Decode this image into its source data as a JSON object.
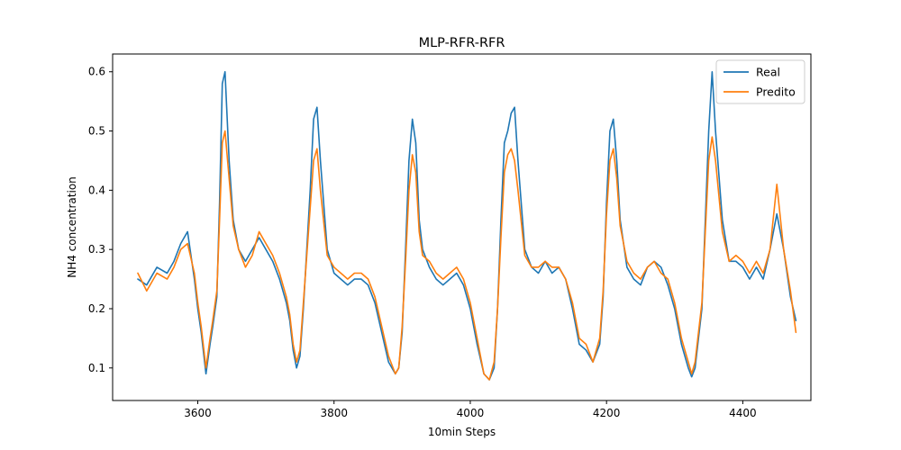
{
  "chart_data": {
    "type": "line",
    "title": "MLP-RFR-RFR",
    "xlabel": "10min Steps",
    "ylabel": "NH4 concentration",
    "xlim": [
      3475,
      4500
    ],
    "ylim": [
      0.045,
      0.63
    ],
    "xticks": [
      3600,
      3800,
      4000,
      4200,
      4400
    ],
    "yticks": [
      0.1,
      0.2,
      0.3,
      0.4,
      0.5,
      0.6
    ],
    "xtick_labels": [
      "3600",
      "3800",
      "4000",
      "4200",
      "4400"
    ],
    "ytick_labels": [
      "0.1",
      "0.2",
      "0.3",
      "0.4",
      "0.5",
      "0.6"
    ],
    "grid": false,
    "legend_position": "top-right",
    "series": [
      {
        "name": "Real",
        "color": "#1f77b4",
        "x": [
          3512,
          3525,
          3540,
          3555,
          3565,
          3575,
          3585,
          3595,
          3600,
          3605,
          3612,
          3618,
          3622,
          3628,
          3632,
          3636,
          3640,
          3646,
          3652,
          3660,
          3670,
          3680,
          3690,
          3700,
          3710,
          3720,
          3730,
          3735,
          3740,
          3745,
          3750,
          3755,
          3760,
          3765,
          3770,
          3775,
          3780,
          3790,
          3800,
          3810,
          3820,
          3830,
          3840,
          3850,
          3860,
          3870,
          3880,
          3890,
          3895,
          3900,
          3905,
          3910,
          3915,
          3920,
          3925,
          3930,
          3940,
          3950,
          3960,
          3970,
          3980,
          3990,
          4000,
          4010,
          4020,
          4028,
          4035,
          4040,
          4045,
          4050,
          4055,
          4060,
          4065,
          4070,
          4080,
          4090,
          4100,
          4110,
          4120,
          4130,
          4140,
          4150,
          4160,
          4170,
          4180,
          4190,
          4195,
          4200,
          4205,
          4210,
          4215,
          4220,
          4230,
          4240,
          4250,
          4260,
          4270,
          4280,
          4290,
          4300,
          4310,
          4320,
          4325,
          4330,
          4340,
          4345,
          4350,
          4355,
          4360,
          4370,
          4380,
          4390,
          4400,
          4410,
          4420,
          4430,
          4440,
          4450,
          4460,
          4470,
          4478
        ],
        "y": [
          0.25,
          0.24,
          0.27,
          0.26,
          0.28,
          0.31,
          0.33,
          0.25,
          0.2,
          0.16,
          0.09,
          0.14,
          0.17,
          0.22,
          0.38,
          0.58,
          0.6,
          0.45,
          0.35,
          0.3,
          0.28,
          0.3,
          0.32,
          0.3,
          0.28,
          0.25,
          0.21,
          0.18,
          0.13,
          0.1,
          0.12,
          0.2,
          0.3,
          0.4,
          0.52,
          0.54,
          0.45,
          0.3,
          0.26,
          0.25,
          0.24,
          0.25,
          0.25,
          0.24,
          0.21,
          0.16,
          0.11,
          0.09,
          0.1,
          0.16,
          0.3,
          0.45,
          0.52,
          0.48,
          0.35,
          0.3,
          0.27,
          0.25,
          0.24,
          0.25,
          0.26,
          0.24,
          0.2,
          0.14,
          0.09,
          0.08,
          0.1,
          0.2,
          0.35,
          0.48,
          0.5,
          0.53,
          0.54,
          0.45,
          0.3,
          0.27,
          0.26,
          0.28,
          0.26,
          0.27,
          0.25,
          0.2,
          0.14,
          0.13,
          0.11,
          0.14,
          0.22,
          0.38,
          0.5,
          0.52,
          0.45,
          0.35,
          0.27,
          0.25,
          0.24,
          0.27,
          0.28,
          0.27,
          0.24,
          0.2,
          0.14,
          0.1,
          0.085,
          0.1,
          0.2,
          0.35,
          0.5,
          0.6,
          0.5,
          0.35,
          0.28,
          0.28,
          0.27,
          0.25,
          0.27,
          0.25,
          0.3,
          0.36,
          0.3,
          0.22,
          0.18
        ]
      },
      {
        "name": "Predito",
        "color": "#ff7f0e",
        "x": [
          3512,
          3525,
          3540,
          3555,
          3565,
          3575,
          3585,
          3595,
          3600,
          3605,
          3612,
          3618,
          3622,
          3628,
          3632,
          3636,
          3640,
          3646,
          3652,
          3660,
          3670,
          3680,
          3690,
          3700,
          3710,
          3720,
          3730,
          3735,
          3740,
          3745,
          3750,
          3755,
          3760,
          3765,
          3770,
          3775,
          3780,
          3790,
          3800,
          3810,
          3820,
          3830,
          3840,
          3850,
          3860,
          3870,
          3880,
          3890,
          3895,
          3900,
          3905,
          3910,
          3915,
          3920,
          3925,
          3930,
          3940,
          3950,
          3960,
          3970,
          3980,
          3990,
          4000,
          4010,
          4020,
          4028,
          4035,
          4040,
          4045,
          4050,
          4055,
          4060,
          4065,
          4070,
          4080,
          4090,
          4100,
          4110,
          4120,
          4130,
          4140,
          4150,
          4160,
          4170,
          4180,
          4190,
          4195,
          4200,
          4205,
          4210,
          4215,
          4220,
          4230,
          4240,
          4250,
          4260,
          4270,
          4280,
          4290,
          4300,
          4310,
          4320,
          4325,
          4330,
          4340,
          4345,
          4350,
          4355,
          4360,
          4370,
          4380,
          4390,
          4400,
          4410,
          4420,
          4430,
          4440,
          4450,
          4460,
          4470,
          4478
        ],
        "y": [
          0.26,
          0.23,
          0.26,
          0.25,
          0.27,
          0.3,
          0.31,
          0.26,
          0.21,
          0.17,
          0.1,
          0.15,
          0.18,
          0.23,
          0.35,
          0.48,
          0.5,
          0.42,
          0.34,
          0.3,
          0.27,
          0.29,
          0.33,
          0.31,
          0.29,
          0.26,
          0.22,
          0.19,
          0.14,
          0.11,
          0.13,
          0.21,
          0.29,
          0.37,
          0.45,
          0.47,
          0.4,
          0.29,
          0.27,
          0.26,
          0.25,
          0.26,
          0.26,
          0.25,
          0.22,
          0.17,
          0.12,
          0.09,
          0.1,
          0.17,
          0.28,
          0.4,
          0.46,
          0.43,
          0.33,
          0.29,
          0.28,
          0.26,
          0.25,
          0.26,
          0.27,
          0.25,
          0.21,
          0.15,
          0.09,
          0.08,
          0.11,
          0.2,
          0.32,
          0.43,
          0.46,
          0.47,
          0.45,
          0.4,
          0.29,
          0.27,
          0.27,
          0.28,
          0.27,
          0.27,
          0.25,
          0.21,
          0.15,
          0.14,
          0.11,
          0.15,
          0.23,
          0.36,
          0.45,
          0.47,
          0.42,
          0.34,
          0.28,
          0.26,
          0.25,
          0.27,
          0.28,
          0.26,
          0.25,
          0.21,
          0.15,
          0.11,
          0.09,
          0.11,
          0.21,
          0.33,
          0.45,
          0.49,
          0.45,
          0.33,
          0.28,
          0.29,
          0.28,
          0.26,
          0.28,
          0.26,
          0.3,
          0.41,
          0.3,
          0.23,
          0.16
        ]
      }
    ]
  }
}
